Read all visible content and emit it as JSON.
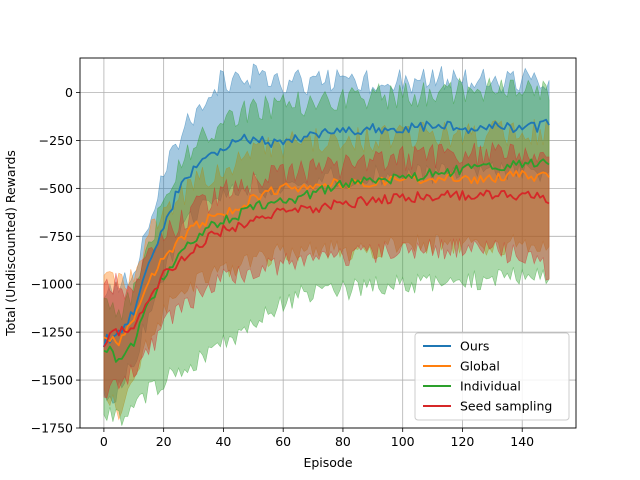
{
  "chart_data": {
    "type": "line",
    "title": "",
    "xlabel": "Episode",
    "ylabel": "Total (Undiscounted) Rewards",
    "xlim": [
      -8,
      158
    ],
    "ylim": [
      -1750,
      180
    ],
    "xticks": [
      0,
      20,
      40,
      60,
      80,
      100,
      120,
      140
    ],
    "yticks": [
      0,
      -250,
      -500,
      -750,
      -1000,
      -1250,
      -1500,
      -1750
    ],
    "xtick_labels": [
      "0",
      "20",
      "40",
      "60",
      "80",
      "100",
      "120",
      "140"
    ],
    "ytick_labels": [
      "0",
      "−250",
      "−500",
      "−750",
      "−1000",
      "−1250",
      "−1500",
      "−1750"
    ],
    "grid": true,
    "legend_position": "lower-right",
    "band": "shaded region around each mean line (spread across runs)",
    "series": [
      {
        "name": "Ours",
        "color": "#1f77b4",
        "x": [
          0,
          5,
          10,
          15,
          20,
          25,
          30,
          35,
          40,
          45,
          50,
          55,
          60,
          65,
          70,
          75,
          80,
          85,
          90,
          95,
          100,
          105,
          110,
          115,
          120,
          125,
          130,
          135,
          140,
          145,
          149
        ],
        "mean": [
          -1300,
          -1250,
          -1150,
          -900,
          -700,
          -500,
          -400,
          -320,
          -290,
          -250,
          -240,
          -270,
          -260,
          -240,
          -220,
          -200,
          -200,
          -210,
          -190,
          -200,
          -190,
          -180,
          -180,
          -170,
          -180,
          -190,
          -170,
          -180,
          -190,
          -180,
          -160
        ],
        "lower": [
          -1550,
          -1500,
          -1350,
          -1100,
          -900,
          -700,
          -600,
          -500,
          -460,
          -440,
          -420,
          -450,
          -450,
          -420,
          -400,
          -390,
          -390,
          -400,
          -380,
          -380,
          -380,
          -370,
          -370,
          -360,
          -360,
          -370,
          -350,
          -360,
          -370,
          -360,
          -340
        ],
        "upper": [
          -1050,
          -1000,
          -950,
          -700,
          -450,
          -250,
          -100,
          20,
          60,
          70,
          80,
          60,
          50,
          50,
          60,
          60,
          70,
          60,
          60,
          60,
          70,
          60,
          70,
          70,
          60,
          60,
          70,
          60,
          60,
          60,
          60
        ]
      },
      {
        "name": "Global",
        "color": "#ff7f0e",
        "x": [
          0,
          5,
          10,
          15,
          20,
          25,
          30,
          35,
          40,
          45,
          50,
          55,
          60,
          65,
          70,
          75,
          80,
          85,
          90,
          95,
          100,
          105,
          110,
          115,
          120,
          125,
          130,
          135,
          140,
          145,
          149
        ],
        "mean": [
          -1250,
          -1300,
          -1200,
          -1000,
          -850,
          -780,
          -700,
          -660,
          -620,
          -600,
          -560,
          -520,
          -500,
          -490,
          -480,
          -470,
          -470,
          -480,
          -470,
          -460,
          -450,
          -450,
          -440,
          -450,
          -440,
          -450,
          -440,
          -440,
          -430,
          -440,
          -430
        ],
        "lower": [
          -1500,
          -1600,
          -1450,
          -1250,
          -1100,
          -1000,
          -950,
          -900,
          -870,
          -850,
          -820,
          -800,
          -780,
          -770,
          -760,
          -760,
          -770,
          -770,
          -760,
          -750,
          -750,
          -740,
          -740,
          -750,
          -740,
          -750,
          -740,
          -740,
          -730,
          -740,
          -730
        ],
        "upper": [
          -1000,
          -1000,
          -950,
          -750,
          -600,
          -560,
          -480,
          -440,
          -390,
          -370,
          -330,
          -300,
          -280,
          -260,
          -250,
          -240,
          -240,
          -250,
          -240,
          -230,
          -220,
          -220,
          -210,
          -220,
          -210,
          -220,
          -210,
          -210,
          -200,
          -210,
          -200
        ]
      },
      {
        "name": "Individual",
        "color": "#2ca02c",
        "x": [
          0,
          5,
          10,
          15,
          20,
          25,
          30,
          35,
          40,
          45,
          50,
          55,
          60,
          65,
          70,
          75,
          80,
          85,
          90,
          95,
          100,
          105,
          110,
          115,
          120,
          125,
          130,
          135,
          140,
          145,
          149
        ],
        "mean": [
          -1320,
          -1400,
          -1300,
          -1100,
          -950,
          -850,
          -780,
          -700,
          -660,
          -640,
          -600,
          -580,
          -560,
          -550,
          -520,
          -500,
          -480,
          -470,
          -460,
          -450,
          -440,
          -440,
          -420,
          -420,
          -400,
          -400,
          -380,
          -380,
          -380,
          -370,
          -360
        ],
        "lower": [
          -1600,
          -1650,
          -1600,
          -1500,
          -1450,
          -1400,
          -1350,
          -1300,
          -1250,
          -1200,
          -1150,
          -1100,
          -1050,
          -1000,
          -1000,
          -980,
          -980,
          -960,
          -960,
          -950,
          -950,
          -940,
          -940,
          -930,
          -930,
          -920,
          -920,
          -910,
          -910,
          -900,
          -900
        ],
        "upper": [
          -1050,
          -1150,
          -1050,
          -800,
          -550,
          -400,
          -300,
          -200,
          -150,
          -120,
          -100,
          -80,
          -70,
          -60,
          -50,
          -40,
          -30,
          -30,
          -20,
          -20,
          -10,
          -10,
          0,
          0,
          10,
          10,
          20,
          20,
          20,
          30,
          30
        ]
      },
      {
        "name": "Seed sampling",
        "color": "#d62728",
        "x": [
          0,
          5,
          10,
          15,
          20,
          25,
          30,
          35,
          40,
          45,
          50,
          55,
          60,
          65,
          70,
          75,
          80,
          85,
          90,
          95,
          100,
          105,
          110,
          115,
          120,
          125,
          130,
          135,
          140,
          145,
          149
        ],
        "mean": [
          -1300,
          -1250,
          -1230,
          -1100,
          -950,
          -880,
          -820,
          -760,
          -720,
          -700,
          -680,
          -650,
          -620,
          -610,
          -600,
          -590,
          -580,
          -570,
          -560,
          -560,
          -550,
          -545,
          -540,
          -535,
          -530,
          -540,
          -535,
          -540,
          -540,
          -545,
          -560
        ],
        "lower": [
          -1500,
          -1450,
          -1400,
          -1300,
          -1150,
          -1080,
          -1020,
          -960,
          -920,
          -900,
          -880,
          -860,
          -840,
          -830,
          -820,
          -810,
          -800,
          -790,
          -780,
          -780,
          -770,
          -770,
          -760,
          -760,
          -760,
          -770,
          -760,
          -780,
          -790,
          -800,
          -900
        ],
        "upper": [
          -1050,
          -1000,
          -1050,
          -850,
          -750,
          -680,
          -620,
          -560,
          -520,
          -500,
          -480,
          -450,
          -420,
          -410,
          -400,
          -390,
          -380,
          -370,
          -360,
          -360,
          -350,
          -345,
          -340,
          -335,
          -330,
          -330,
          -320,
          -320,
          -310,
          -300,
          -300
        ]
      }
    ]
  }
}
